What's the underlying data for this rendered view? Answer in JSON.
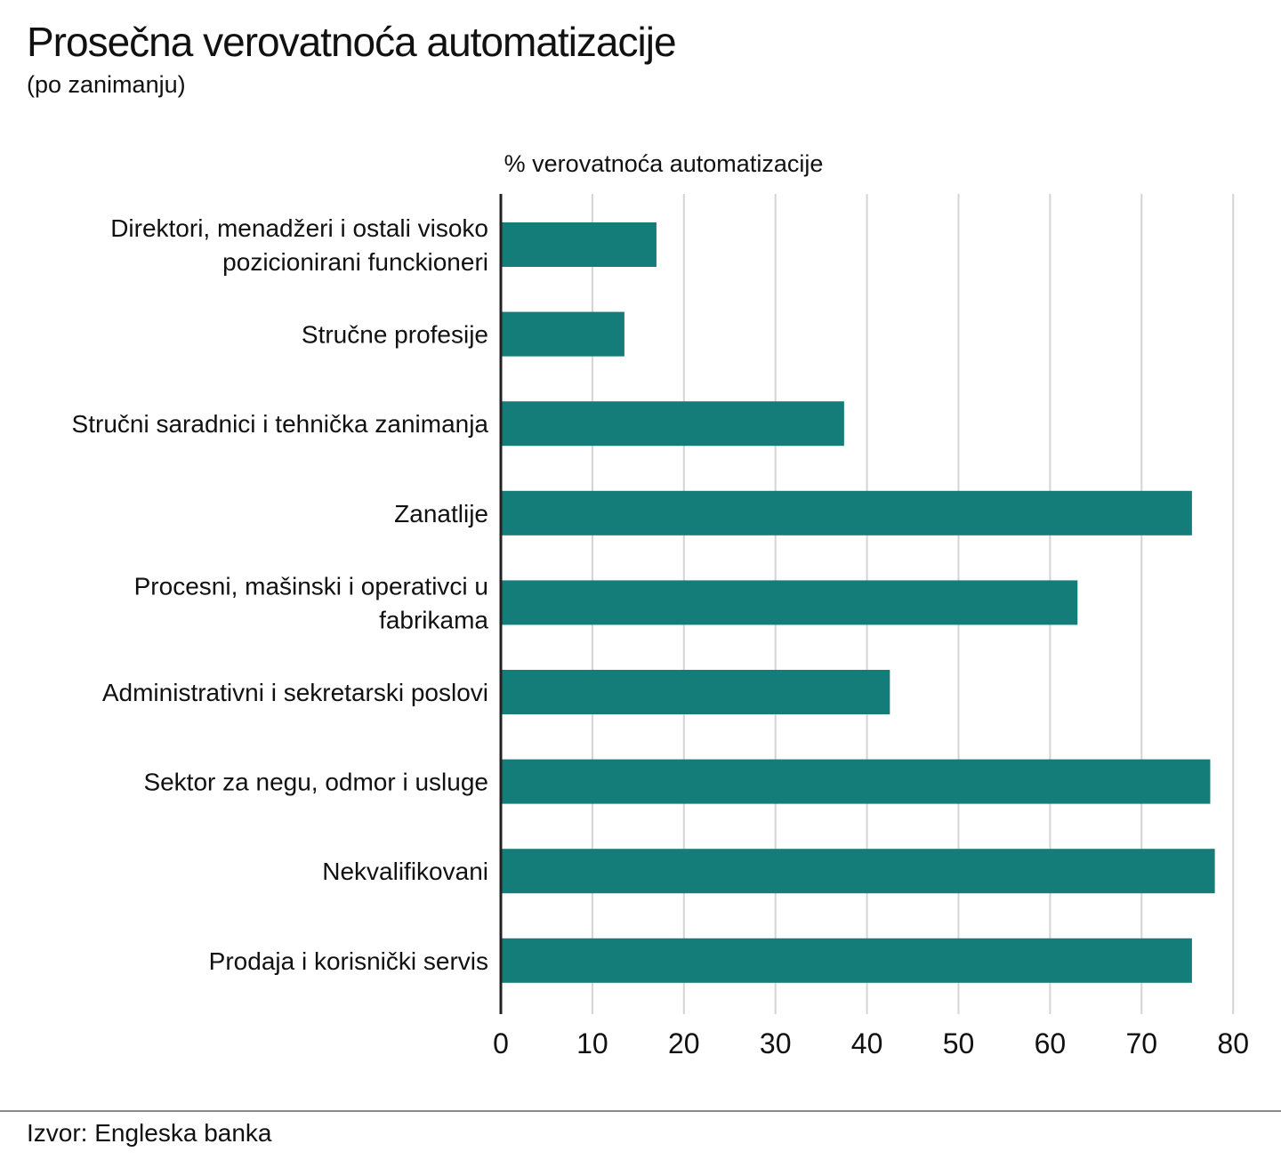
{
  "header": {
    "title": "Prosečna verovatnoća automatizacije",
    "subtitle": "(po zanimanju)"
  },
  "footer": {
    "source": "Izvor: Engleska banka"
  },
  "chart_data": {
    "type": "bar",
    "orientation": "horizontal",
    "title": "Prosečna verovatnoća automatizacije",
    "subtitle": "(po zanimanju)",
    "xlabel": "% verovatnoća automatizacije",
    "ylabel": "",
    "xlim": [
      0,
      80
    ],
    "xticks": [
      0,
      10,
      20,
      30,
      40,
      50,
      60,
      70,
      80
    ],
    "grid": true,
    "legend": "none",
    "bar_color": "#147d7a",
    "categories": [
      [
        "Direktori, menadžeri i ostali visoko",
        "pozicionirani funckioneri"
      ],
      [
        "Stručne profesije"
      ],
      [
        "Stručni saradnici i tehnička zanimanja"
      ],
      [
        "Zanatlije"
      ],
      [
        "Procesni, mašinski i operativci u",
        "fabrikama"
      ],
      [
        "Administrativni i sekretarski poslovi"
      ],
      [
        "Sektor za negu, odmor i usluge"
      ],
      [
        "Nekvalifikovani"
      ],
      [
        "Prodaja i korisnički servis"
      ]
    ],
    "values": [
      17,
      13.5,
      37.5,
      75.5,
      63,
      42.5,
      77.5,
      78,
      75.5
    ]
  }
}
